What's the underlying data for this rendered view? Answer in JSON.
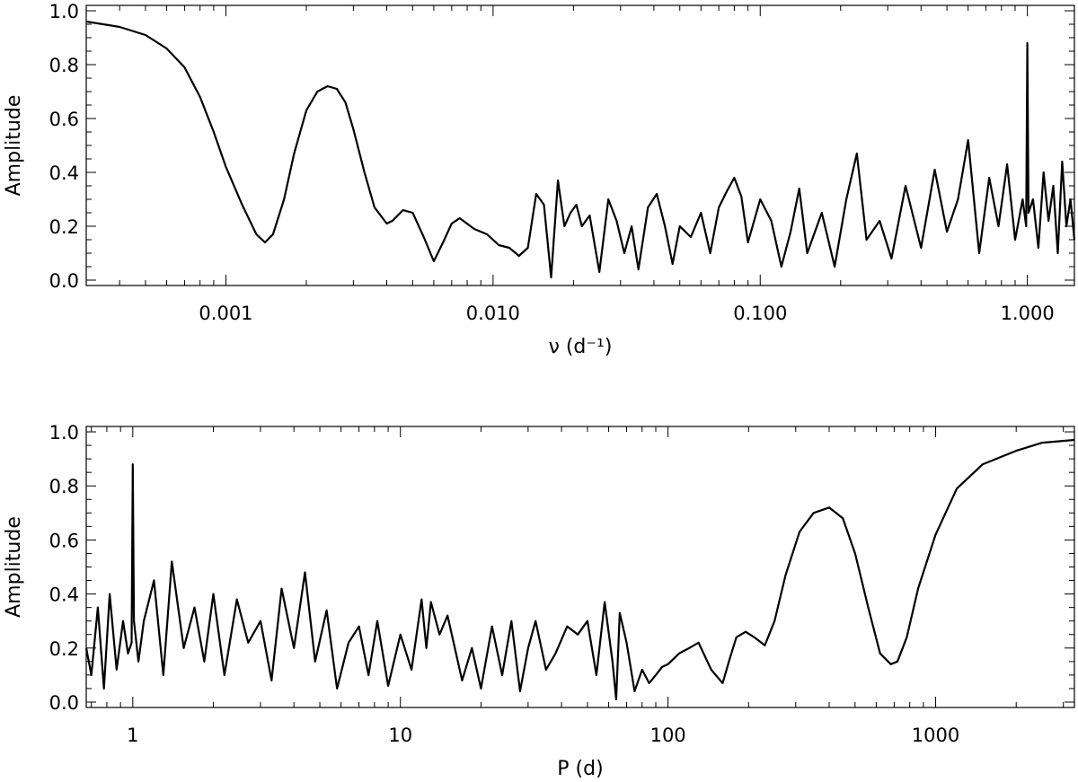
{
  "chart_data": [
    {
      "type": "line",
      "xscale": "log",
      "xlabel": "ν (d⁻¹)",
      "ylabel": "Amplitude",
      "xlim": [
        0.0003,
        1.5
      ],
      "ylim": [
        -0.02,
        1.02
      ],
      "xticks": [
        0.001,
        0.01,
        0.1,
        1.0
      ],
      "xtick_labels": [
        "0.001",
        "0.010",
        "0.100",
        "1.000"
      ],
      "yticks": [
        0.0,
        0.2,
        0.4,
        0.6,
        0.8,
        1.0
      ],
      "ytick_labels": [
        "0.0",
        "0.2",
        "0.4",
        "0.6",
        "0.8",
        "1.0"
      ],
      "series": [
        {
          "x": [
            0.0003,
            0.0004,
            0.0005,
            0.0006,
            0.0007,
            0.0008,
            0.0009,
            0.001,
            0.00115,
            0.0013,
            0.0014,
            0.0015,
            0.00165,
            0.0018,
            0.002,
            0.0022,
            0.0024,
            0.0026,
            0.0028,
            0.003,
            0.0033,
            0.0036,
            0.004,
            0.0042,
            0.0046,
            0.005,
            0.0055,
            0.006,
            0.0065,
            0.007,
            0.0075,
            0.0085,
            0.0095,
            0.0105,
            0.0115,
            0.0125,
            0.0135,
            0.0145,
            0.0155,
            0.0165,
            0.0175,
            0.0185,
            0.0195,
            0.0205,
            0.0215,
            0.023,
            0.025,
            0.027,
            0.029,
            0.031,
            0.033,
            0.035,
            0.038,
            0.041,
            0.044,
            0.047,
            0.05,
            0.055,
            0.06,
            0.065,
            0.07,
            0.075,
            0.08,
            0.085,
            0.09,
            0.1,
            0.11,
            0.12,
            0.13,
            0.14,
            0.15,
            0.17,
            0.19,
            0.21,
            0.23,
            0.25,
            0.28,
            0.31,
            0.35,
            0.4,
            0.45,
            0.5,
            0.55,
            0.6,
            0.66,
            0.72,
            0.78,
            0.84,
            0.9,
            0.96,
            0.99,
            1.0,
            1.01,
            1.05,
            1.1,
            1.15,
            1.2,
            1.25,
            1.3,
            1.35,
            1.4,
            1.45,
            1.5
          ],
          "y": [
            0.96,
            0.94,
            0.91,
            0.86,
            0.79,
            0.68,
            0.55,
            0.42,
            0.28,
            0.17,
            0.14,
            0.17,
            0.3,
            0.47,
            0.63,
            0.7,
            0.72,
            0.71,
            0.66,
            0.56,
            0.4,
            0.27,
            0.21,
            0.22,
            0.26,
            0.25,
            0.16,
            0.07,
            0.14,
            0.21,
            0.23,
            0.19,
            0.17,
            0.13,
            0.12,
            0.09,
            0.12,
            0.32,
            0.28,
            0.01,
            0.37,
            0.2,
            0.25,
            0.28,
            0.2,
            0.24,
            0.03,
            0.3,
            0.22,
            0.1,
            0.2,
            0.04,
            0.27,
            0.32,
            0.2,
            0.06,
            0.2,
            0.16,
            0.25,
            0.1,
            0.27,
            0.33,
            0.38,
            0.31,
            0.14,
            0.3,
            0.22,
            0.05,
            0.18,
            0.34,
            0.1,
            0.25,
            0.05,
            0.3,
            0.47,
            0.15,
            0.22,
            0.08,
            0.35,
            0.12,
            0.41,
            0.18,
            0.3,
            0.52,
            0.1,
            0.38,
            0.2,
            0.43,
            0.15,
            0.3,
            0.2,
            0.88,
            0.25,
            0.3,
            0.12,
            0.4,
            0.22,
            0.35,
            0.1,
            0.44,
            0.2,
            0.3,
            0.15
          ]
        }
      ]
    },
    {
      "type": "line",
      "xscale": "log",
      "xlabel": "P (d)",
      "ylabel": "Amplitude",
      "xlim": [
        0.67,
        3300
      ],
      "ylim": [
        -0.02,
        1.02
      ],
      "xticks": [
        1,
        10,
        100,
        1000
      ],
      "xtick_labels": [
        "1",
        "10",
        "100",
        "1000"
      ],
      "yticks": [
        0.0,
        0.2,
        0.4,
        0.6,
        0.8,
        1.0
      ],
      "ytick_labels": [
        "0.0",
        "0.2",
        "0.4",
        "0.6",
        "0.8",
        "1.0"
      ],
      "series": [
        {
          "x": [
            0.67,
            0.7,
            0.74,
            0.78,
            0.82,
            0.87,
            0.92,
            0.96,
            0.99,
            1.0,
            1.01,
            1.05,
            1.1,
            1.2,
            1.3,
            1.4,
            1.55,
            1.7,
            1.85,
            2.0,
            2.2,
            2.45,
            2.7,
            3.0,
            3.3,
            3.6,
            4.0,
            4.4,
            4.8,
            5.3,
            5.8,
            6.4,
            7.0,
            7.6,
            8.2,
            9.0,
            10.0,
            11.0,
            12.0,
            12.5,
            13.0,
            14.0,
            15.0,
            17.0,
            18.5,
            20.0,
            22.0,
            24.0,
            26.0,
            28.0,
            30.0,
            32.0,
            35.0,
            38.0,
            42.0,
            46.0,
            50.0,
            54.0,
            58.0,
            62.0,
            64.0,
            66.0,
            70.0,
            75.0,
            80.0,
            85.0,
            90.0,
            95.0,
            100.0,
            110.0,
            120.0,
            130.0,
            145.0,
            160.0,
            170.0,
            180.0,
            195.0,
            210.0,
            230.0,
            250.0,
            275.0,
            310.0,
            350.0,
            400.0,
            450.0,
            500.0,
            560.0,
            620.0,
            680.0,
            720.0,
            780.0,
            860.0,
            1000.0,
            1200.0,
            1500.0,
            2000.0,
            2500.0,
            3300.0
          ],
          "y": [
            0.2,
            0.1,
            0.35,
            0.05,
            0.4,
            0.12,
            0.3,
            0.18,
            0.22,
            0.88,
            0.3,
            0.15,
            0.3,
            0.45,
            0.1,
            0.52,
            0.2,
            0.35,
            0.15,
            0.4,
            0.1,
            0.38,
            0.22,
            0.3,
            0.08,
            0.42,
            0.2,
            0.48,
            0.15,
            0.34,
            0.05,
            0.22,
            0.28,
            0.1,
            0.3,
            0.06,
            0.25,
            0.12,
            0.38,
            0.2,
            0.37,
            0.25,
            0.32,
            0.08,
            0.2,
            0.05,
            0.28,
            0.1,
            0.3,
            0.04,
            0.2,
            0.3,
            0.12,
            0.18,
            0.28,
            0.25,
            0.3,
            0.1,
            0.37,
            0.15,
            0.01,
            0.33,
            0.22,
            0.04,
            0.12,
            0.07,
            0.1,
            0.13,
            0.14,
            0.18,
            0.2,
            0.22,
            0.12,
            0.07,
            0.16,
            0.24,
            0.26,
            0.24,
            0.21,
            0.3,
            0.47,
            0.63,
            0.7,
            0.72,
            0.68,
            0.55,
            0.35,
            0.18,
            0.14,
            0.15,
            0.24,
            0.42,
            0.62,
            0.79,
            0.88,
            0.93,
            0.96,
            0.97
          ]
        }
      ]
    }
  ]
}
